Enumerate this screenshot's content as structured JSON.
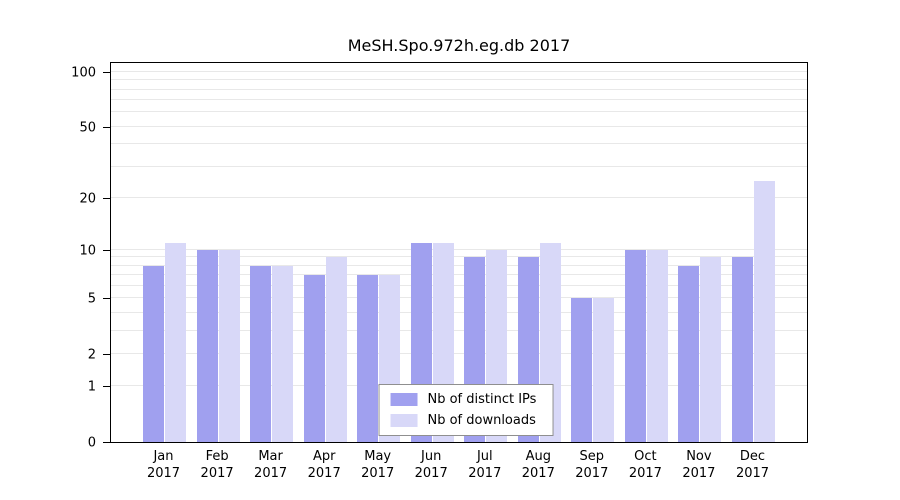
{
  "title": "MeSH.Spo.972h.eg.db 2017",
  "colors": {
    "ips": "#a0a0ef",
    "downloads": "#d8d8f8",
    "grid": "#e8e8e8",
    "axis": "#000000",
    "legend_border": "#8f8f8f"
  },
  "chart_data": {
    "type": "bar",
    "title": "MeSH.Spo.972h.eg.db 2017",
    "year": "2017",
    "categories": [
      "Jan",
      "Feb",
      "Mar",
      "Apr",
      "May",
      "Jun",
      "Jul",
      "Aug",
      "Sep",
      "Oct",
      "Nov",
      "Dec"
    ],
    "series": [
      {
        "name": "Nb of distinct IPs",
        "color_key": "ips",
        "values": [
          8,
          10,
          8,
          7,
          7,
          11,
          9,
          9,
          5,
          10,
          8,
          9
        ]
      },
      {
        "name": "Nb of downloads",
        "color_key": "downloads",
        "values": [
          11,
          10,
          8,
          9,
          7,
          11,
          10,
          11,
          5,
          10,
          9,
          25
        ]
      }
    ],
    "xlabel": "",
    "ylabel": "",
    "y_scale": "log1p",
    "ylim": [
      0,
      100
    ],
    "yticks": [
      0,
      1,
      2,
      5,
      10,
      20,
      50,
      100
    ],
    "gridlines": [
      1,
      2,
      3,
      4,
      5,
      6,
      7,
      8,
      9,
      10,
      20,
      30,
      40,
      50,
      60,
      70,
      80,
      90,
      100
    ],
    "legend": {
      "position": "bottom-center",
      "entries": [
        "Nb of distinct IPs",
        "Nb of downloads"
      ]
    }
  }
}
